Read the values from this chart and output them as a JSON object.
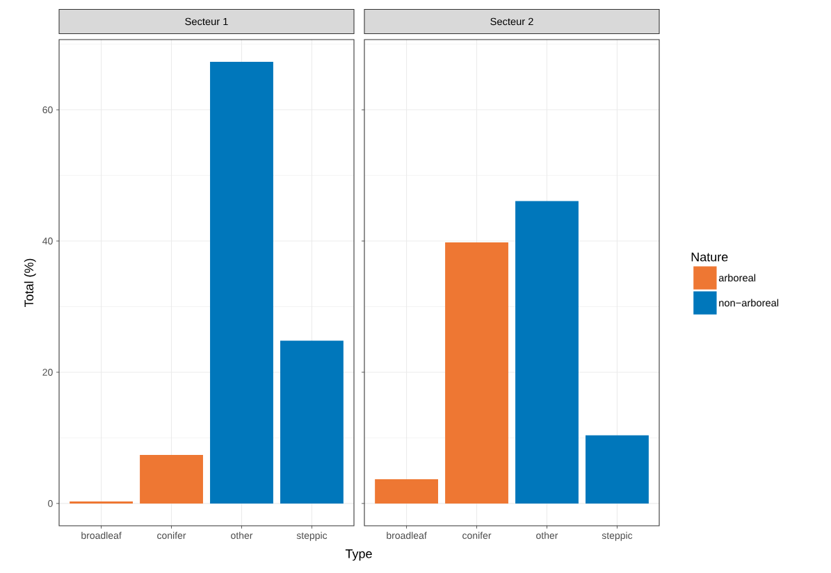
{
  "chart_data": [
    {
      "type": "bar",
      "title": "Secteur 1",
      "ylabel": "Total (%)",
      "xlabel": "Type",
      "categories": [
        "broadleaf",
        "conifer",
        "other",
        "steppic"
      ],
      "series": [
        {
          "color": "#ee7733",
          "values": [
            0.3,
            7.4,
            null,
            null
          ]
        },
        {
          "color": "#0077bb",
          "values": [
            null,
            null,
            67.3,
            24.8
          ]
        }
      ],
      "ylim": [
        -3.4,
        70.7
      ],
      "yticks": [
        0,
        20,
        40,
        60
      ],
      "grid": true,
      "legend": false
    },
    {
      "type": "bar",
      "title": "Secteur 2",
      "legend_title": "Nature",
      "categories": [
        "broadleaf",
        "conifer",
        "other",
        "steppic"
      ],
      "series": [
        {
          "name": "arboreal",
          "color": "#ee7733",
          "values": [
            3.7,
            39.8,
            null,
            null
          ]
        },
        {
          "name": "non−arboreal",
          "color": "#0077bb",
          "values": [
            null,
            null,
            46.1,
            10.4
          ]
        }
      ],
      "ylim": [
        -3.4,
        70.7
      ],
      "yticks": [
        0,
        20,
        40,
        60
      ],
      "grid": true,
      "legend": "right",
      "tick_labels": "x"
    }
  ]
}
